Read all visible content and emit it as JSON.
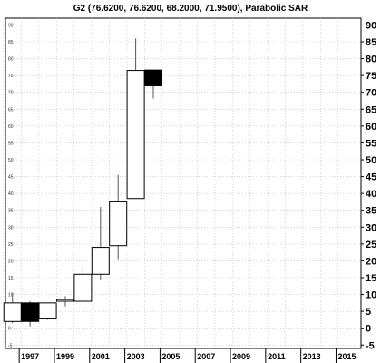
{
  "chart_data": {
    "type": "candlestick",
    "title": "G2 (76.6200, 76.6200, 68.2000, 71.9500), Parabolic SAR",
    "xlabel": "",
    "ylabel": "",
    "ylim": [
      -6,
      92
    ],
    "yticks": [
      -5,
      0,
      5,
      10,
      15,
      20,
      25,
      30,
      35,
      40,
      45,
      50,
      55,
      60,
      65,
      70,
      75,
      80,
      85,
      90
    ],
    "x_ticks": [
      "1997",
      "1999",
      "2001",
      "2003",
      "2005",
      "2007",
      "2009",
      "2011",
      "2013",
      "2015"
    ],
    "x_range": [
      1995.6,
      2015.8
    ],
    "grid": true,
    "candles": [
      {
        "year": 1996,
        "open": 2.0,
        "high": 10.5,
        "low": 1.5,
        "close": 7.5
      },
      {
        "year": 1997,
        "open": 7.5,
        "high": 8.0,
        "low": 0.5,
        "close": 2.0
      },
      {
        "year": 1998,
        "open": 3.0,
        "high": 7.5,
        "low": 2.5,
        "close": 7.5
      },
      {
        "year": 1999,
        "open": 8.0,
        "high": 9.5,
        "low": 6.5,
        "close": 8.5
      },
      {
        "year": 2000,
        "open": 8.0,
        "high": 18.0,
        "low": 7.5,
        "close": 16.0
      },
      {
        "year": 2001,
        "open": 16.0,
        "high": 36.0,
        "low": 14.5,
        "close": 24.0
      },
      {
        "year": 2002,
        "open": 24.5,
        "high": 45.5,
        "low": 20.5,
        "close": 37.5
      },
      {
        "year": 2003,
        "open": 38.5,
        "high": 86.0,
        "low": 38.5,
        "close": 76.5
      },
      {
        "year": 2004,
        "open": 76.62,
        "high": 76.62,
        "low": 68.2,
        "close": 71.95
      }
    ],
    "colors": {
      "up": "#ffffff",
      "down": "#000000",
      "wick": "#555555",
      "grid": "#bbbbbb"
    }
  }
}
